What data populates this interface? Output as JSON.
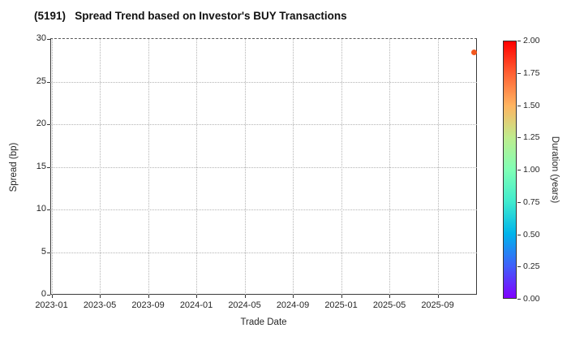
{
  "title": "(5191)   Spread Trend based on Investor's BUY Transactions",
  "chart_data": {
    "type": "scatter",
    "title": "(5191)   Spread Trend based on Investor's BUY Transactions",
    "xlabel": "Trade Date",
    "ylabel": "Spread (bp)",
    "x_tick_labels": [
      "2023-01",
      "2023-05",
      "2023-09",
      "2024-01",
      "2024-05",
      "2024-09",
      "2025-01",
      "2025-05",
      "2025-09"
    ],
    "x_tick_interval_months": 4,
    "y_ticks": [
      0,
      5,
      10,
      15,
      20,
      25,
      30
    ],
    "ylim": [
      0,
      30
    ],
    "grid": true,
    "grid_style": "dotted",
    "legend_position": "none",
    "points": [
      {
        "date": "2025-12",
        "months_from_first_tick": 35,
        "spread_bp": 28.4,
        "duration_years": 1.8,
        "color": "#f3581f"
      }
    ],
    "colorbar": {
      "label": "Duration (years)",
      "colormap": "rainbow",
      "range": [
        0.0,
        2.0
      ],
      "tick_labels": [
        "2.00",
        "1.75",
        "1.50",
        "1.25",
        "1.00",
        "0.75",
        "0.50",
        "0.25",
        "0.00"
      ],
      "gradient_stops_bottom_to_top": [
        "#8000ff",
        "#4060fa",
        "#00b4eb",
        "#40ebce",
        "#80ffb5",
        "#bfec8e",
        "#ffb461",
        "#ff6133",
        "#ff0000"
      ]
    }
  },
  "colors": {
    "spine": "#3a3a3a",
    "gridline": "#b4b4b4",
    "text": "#262626",
    "title_text": "#111111",
    "background": "#ffffff"
  }
}
